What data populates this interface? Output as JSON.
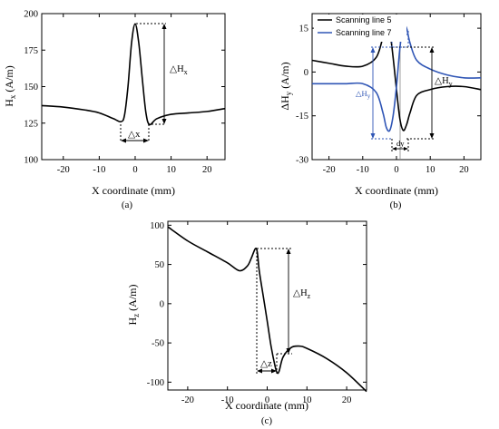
{
  "chart_data": [
    {
      "panel_label": "(a)",
      "type": "line",
      "xlabel": "X coordinate (mm)",
      "ylabel": "Hx (A/m)",
      "ylabel_main": "H",
      "ylabel_sub": "x",
      "ylabel_rest": " (A/m)",
      "xlim": [
        -26,
        25
      ],
      "ylim": [
        100,
        200
      ],
      "xticks": [
        -20,
        -10,
        0,
        10,
        20
      ],
      "yticks": [
        100,
        125,
        150,
        175,
        200
      ],
      "series": [
        {
          "color": "#000000",
          "x": [
            -26,
            -20,
            -14,
            -10,
            -6,
            -4,
            -3,
            -2,
            -1,
            0,
            1,
            2,
            3,
            4,
            6,
            10,
            15,
            20,
            25
          ],
          "y": [
            137,
            136,
            134,
            132,
            128,
            126,
            130,
            150,
            180,
            193,
            180,
            155,
            132,
            124,
            128,
            131,
            132,
            133,
            135
          ]
        }
      ],
      "annotations": {
        "dH": "△Hx",
        "dH_main": "△H",
        "dH_sub": "x",
        "dX": "△x"
      }
    },
    {
      "panel_label": "(b)",
      "type": "line",
      "xlabel": "X coordinate (mm)",
      "ylabel": "ΔHy (A/m)",
      "ylabel_main": "ΔH",
      "ylabel_sub": "y",
      "ylabel_rest": " (A/m)",
      "xlim": [
        -25,
        25
      ],
      "ylim": [
        -30,
        20
      ],
      "xticks": [
        -20,
        -10,
        0,
        10,
        20
      ],
      "yticks": [
        -30,
        -15,
        0,
        15
      ],
      "legend_position": "top-left",
      "series": [
        {
          "name": "Scanning line 5",
          "color": "#000000",
          "x": [
            -25,
            -20,
            -15,
            -10,
            -6,
            -4,
            -3,
            -2,
            -1,
            0,
            1,
            2,
            3,
            4,
            6,
            10,
            15,
            20,
            25
          ],
          "y": [
            4,
            3,
            2,
            2,
            5,
            12,
            16,
            14,
            5,
            -6,
            -16,
            -20,
            -18,
            -14,
            -8,
            -6,
            -5,
            -5,
            -6
          ]
        },
        {
          "name": "Scanning line 7",
          "color": "#2f55b5",
          "x": [
            -25,
            -20,
            -15,
            -10,
            -6,
            -4,
            -3,
            -2,
            -1,
            0,
            1,
            2,
            3,
            4,
            6,
            10,
            15,
            20,
            25
          ],
          "y": [
            -4,
            -4,
            -4,
            -4,
            -7,
            -14,
            -19,
            -20,
            -15,
            -5,
            8,
            16,
            15,
            10,
            4,
            1,
            -1,
            -2,
            -2
          ]
        }
      ],
      "annotations": {
        "dH_black": "△Hy",
        "dH_blue": "△Hy",
        "dH_main": "△H",
        "dH_sub": "y",
        "dY_top": "dy",
        "dY_bottom": "dy"
      }
    },
    {
      "panel_label": "(c)",
      "type": "line",
      "xlabel": "X coordinate (mm)",
      "ylabel": "Hz (A/m)",
      "ylabel_main": "H",
      "ylabel_sub": "z",
      "ylabel_rest": " (A/m)",
      "xlim": [
        -25,
        25
      ],
      "ylim": [
        -110,
        105
      ],
      "xticks": [
        -20,
        -10,
        0,
        10,
        20
      ],
      "yticks": [
        -100,
        -50,
        0,
        50,
        100
      ],
      "series": [
        {
          "color": "#000000",
          "x": [
            -25,
            -20,
            -15,
            -10,
            -7,
            -5,
            -4,
            -3,
            -2.5,
            -2,
            -1,
            0,
            1,
            2,
            2.5,
            3,
            4,
            6,
            8,
            10,
            15,
            20,
            25
          ],
          "y": [
            98,
            80,
            66,
            52,
            42,
            48,
            58,
            70,
            66,
            42,
            10,
            -22,
            -55,
            -80,
            -88,
            -86,
            -68,
            -56,
            -54,
            -57,
            -70,
            -88,
            -112
          ]
        }
      ],
      "annotations": {
        "dH": "△Hz",
        "dH_main": "△H",
        "dH_sub": "z",
        "dZ": "△z"
      }
    }
  ]
}
